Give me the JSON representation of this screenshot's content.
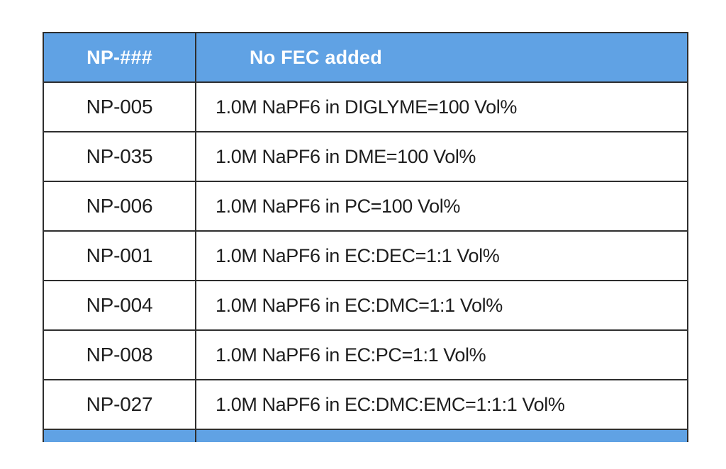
{
  "table": {
    "header": {
      "col1": "NP-###",
      "col2": "No FEC added"
    },
    "rows": [
      {
        "id": "NP-005",
        "composition": "1.0M NaPF6 in DIGLYME=100 Vol%"
      },
      {
        "id": "NP-035",
        "composition": "1.0M NaPF6 in DME=100 Vol%"
      },
      {
        "id": "NP-006",
        "composition": "1.0M NaPF6 in PC=100 Vol%"
      },
      {
        "id": "NP-001",
        "composition": "1.0M NaPF6 in EC:DEC=1:1 Vol%"
      },
      {
        "id": "NP-004",
        "composition": "1.0M NaPF6 in EC:DMC=1:1 Vol%"
      },
      {
        "id": "NP-008",
        "composition": "1.0M NaPF6 in EC:PC=1:1 Vol%"
      },
      {
        "id": "NP-027",
        "composition": "1.0M NaPF6 in EC:DMC:EMC=1:1:1 Vol%"
      }
    ]
  },
  "colors": {
    "header_bg": "#60a2e4",
    "border": "#2e2e2e",
    "header_text": "#ffffff",
    "body_text": "#1e1e1e",
    "page_bg": "#ffffff"
  }
}
